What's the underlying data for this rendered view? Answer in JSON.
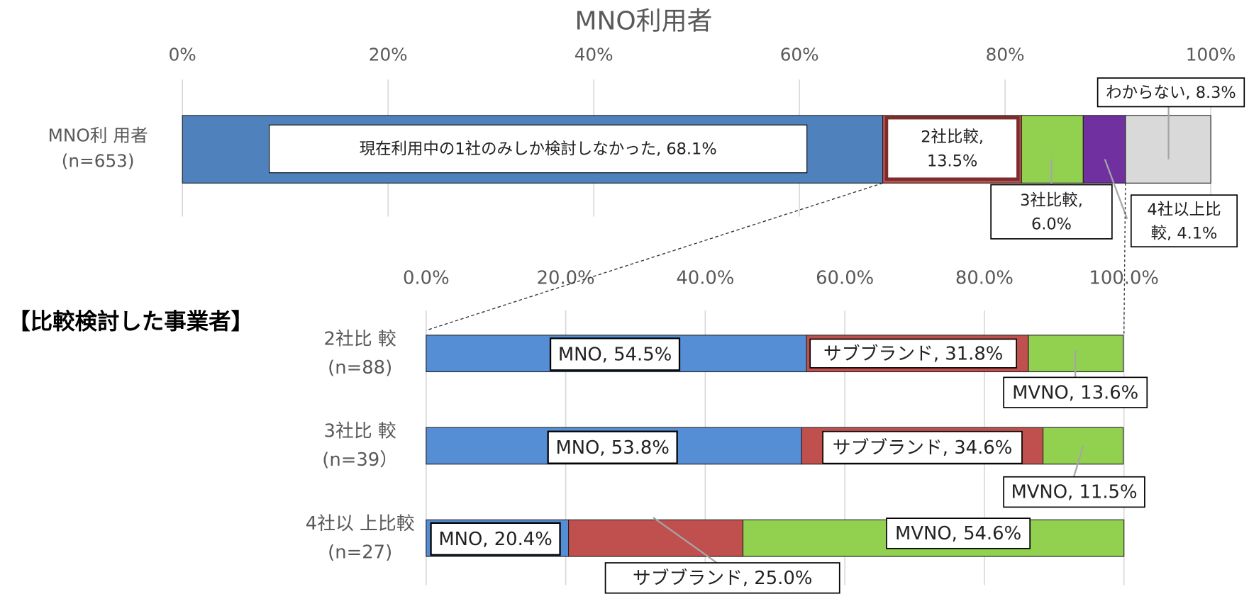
{
  "chart_data": [
    {
      "type": "bar",
      "orientation": "horizontal",
      "stacked": true,
      "title": "MNO利用者",
      "categories": [
        "MNO利 用者\n(n=653)"
      ],
      "series": [
        {
          "name": "現在利用中の1社のみしか検討しなかった",
          "color": "#4f81bd",
          "values": [
            68.1
          ],
          "value_labels": [
            "現在利用中の1社のみしか検討しなかった, 68.1%"
          ]
        },
        {
          "name": "2社比較",
          "color": "#c0504d",
          "values": [
            13.5
          ],
          "value_labels": [
            "2社比較,\n13.5%"
          ]
        },
        {
          "name": "3社比較",
          "color": "#92d050",
          "values": [
            6.0
          ],
          "value_labels": [
            "3社比較,\n6.0%"
          ]
        },
        {
          "name": "4社以上比較",
          "color": "#7030a0",
          "values": [
            4.1
          ],
          "value_labels": [
            "4社以上比\n較, 4.1%"
          ]
        },
        {
          "name": "わからない",
          "color": "#d9d9d9",
          "values": [
            8.3
          ],
          "value_labels": [
            "わからない, 8.3%"
          ]
        }
      ],
      "xlim": [
        0,
        100
      ],
      "xticks": [
        {
          "value": 0,
          "label": "0%"
        },
        {
          "value": 20,
          "label": "20%"
        },
        {
          "value": 40,
          "label": "40%"
        },
        {
          "value": 60,
          "label": "60%"
        },
        {
          "value": 80,
          "label": "80%"
        },
        {
          "value": 100,
          "label": "100%"
        }
      ],
      "grid": true
    },
    {
      "type": "bar",
      "orientation": "horizontal",
      "stacked": true,
      "title": "【比較検討した事業者】",
      "categories": [
        "2社比 較\n(n=88)",
        "3社比 較\n(n=39）",
        "4社以 上比較\n(n=27)"
      ],
      "series": [
        {
          "name": "MNO",
          "color": "#558ed5",
          "values": [
            54.5,
            53.8,
            20.4
          ],
          "value_labels": [
            "MNO, 54.5%",
            "MNO, 53.8%",
            "MNO, 20.4%"
          ]
        },
        {
          "name": "サブブランド",
          "color": "#c0504d",
          "values": [
            31.8,
            34.6,
            25.0
          ],
          "value_labels": [
            "サブブランド, 31.8%",
            "サブブランド, 34.6%",
            "サブブランド, 25.0%"
          ]
        },
        {
          "name": "MVNO",
          "color": "#92d050",
          "values": [
            13.6,
            11.5,
            54.6
          ],
          "value_labels": [
            "MVNO, 13.6%",
            "MVNO, 11.5%",
            "MVNO, 54.6%"
          ]
        }
      ],
      "xlim": [
        0,
        100
      ],
      "xticks": [
        {
          "value": 0,
          "label": "0.0%"
        },
        {
          "value": 20,
          "label": "20.0%"
        },
        {
          "value": 40,
          "label": "40.0%"
        },
        {
          "value": 60,
          "label": "60.0%"
        },
        {
          "value": 80,
          "label": "80.0%"
        },
        {
          "value": 100,
          "label": "100.0%"
        }
      ],
      "grid": true
    }
  ]
}
